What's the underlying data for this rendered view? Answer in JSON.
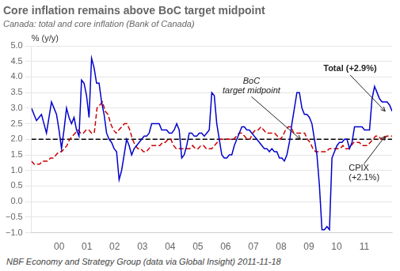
{
  "chart_data": {
    "type": "line",
    "title": "Core inflation remains above BoC target midpoint",
    "subtitle": "Canada: total and core inflation (Bank of Canada)",
    "footnote": "NBF Economy and Strategy Group (data via Global Insight) 2011-11-18",
    "ylabel": "% (y/y)",
    "xlim": [
      1999.0,
      2012.0
    ],
    "xticks": [
      {
        "value": 2000,
        "label": "00"
      },
      {
        "value": 2001,
        "label": "01"
      },
      {
        "value": 2002,
        "label": "02"
      },
      {
        "value": 2003,
        "label": "03"
      },
      {
        "value": 2004,
        "label": "04"
      },
      {
        "value": 2005,
        "label": "05"
      },
      {
        "value": 2006,
        "label": "06"
      },
      {
        "value": 2007,
        "label": "07"
      },
      {
        "value": 2008,
        "label": "08"
      },
      {
        "value": 2009,
        "label": "09"
      },
      {
        "value": 2010,
        "label": "10"
      },
      {
        "value": 2011,
        "label": "11"
      }
    ],
    "ylim": [
      -1.0,
      5.0
    ],
    "yticks": [
      {
        "value": -1.0,
        "label": "−1.0"
      },
      {
        "value": -0.5,
        "label": "−0.5"
      },
      {
        "value": 0.0,
        "label": "0.0"
      },
      0.5,
      {
        "value": 1.0,
        "label": "1.0"
      },
      1.5,
      {
        "value": 2.0,
        "label": "2.0"
      },
      2.5,
      {
        "value": 3.0,
        "label": "3.0"
      },
      3.5,
      {
        "value": 4.0,
        "label": "4.0"
      },
      4.5,
      {
        "value": 5.0,
        "label": "5.0"
      }
    ],
    "grid": "y",
    "series": [
      {
        "color": "#0000CC",
        "line_style": "solid",
        "x": [
          1999.0,
          1999.0903,
          1999.1806,
          1999.2708,
          1999.3611,
          1999.4514,
          1999.5417,
          1999.6319,
          1999.7222,
          1999.8125,
          1999.9028,
          1999.9931,
          2000.0833,
          2000.1736,
          2000.2639,
          2000.3542,
          2000.4444,
          2000.5347,
          2000.625,
          2000.7153,
          2000.8056,
          2000.8958,
          2000.9861,
          2001.0764,
          2001.1667,
          2001.2569,
          2001.3472,
          2001.4375,
          2001.5278,
          2001.6181,
          2001.7083,
          2001.7986,
          2001.8889,
          2001.9792,
          2002.0694,
          2002.1597,
          2002.25,
          2002.3403,
          2002.4306,
          2002.5208,
          2002.6111,
          2002.7014,
          2002.7917,
          2002.8819,
          2002.9722,
          2003.0625,
          2003.1528,
          2003.2431,
          2003.3333,
          2003.4236,
          2003.5139,
          2003.6042,
          2003.6944,
          2003.7847,
          2003.875,
          2003.9653,
          2004.0556,
          2004.1458,
          2004.2361,
          2004.3264,
          2004.4167,
          2004.5069,
          2004.5972,
          2004.6875,
          2004.7778,
          2004.8681,
          2004.9583,
          2005.0486,
          2005.1389,
          2005.2292,
          2005.3194,
          2005.4097,
          2005.5,
          2005.5903,
          2005.6806,
          2005.7708,
          2005.8611,
          2005.9514,
          2006.0417,
          2006.1319,
          2006.2222,
          2006.3125,
          2006.4028,
          2006.4931,
          2006.5833,
          2006.6736,
          2006.7639,
          2006.8542,
          2006.9444,
          2007.0347,
          2007.125,
          2007.2153,
          2007.3056,
          2007.3958,
          2007.4861,
          2007.5764,
          2007.6667,
          2007.7569,
          2007.8472,
          2007.9375,
          2008.0278,
          2008.1181,
          2008.2083,
          2008.2986,
          2008.3889,
          2008.4792,
          2008.5694,
          2008.6597,
          2008.75,
          2008.8403,
          2008.9306,
          2009.0208,
          2009.1111,
          2009.2014,
          2009.2917,
          2009.3819,
          2009.4722,
          2009.5625,
          2009.6528,
          2009.7431,
          2009.8333,
          2009.9236,
          2010.0139,
          2010.1042,
          2010.1944,
          2010.2847,
          2010.375,
          2010.4653,
          2010.5556,
          2010.6458,
          2010.7361,
          2010.8264,
          2010.9167,
          2011.0069,
          2011.0972,
          2011.1875,
          2011.2778,
          2011.3681,
          2011.4583,
          2011.5486,
          2011.6389,
          2011.7292,
          2011.8194,
          2011.9097,
          2012.0
        ],
        "values": [
          3.0,
          2.8,
          2.6,
          2.7,
          2.8,
          2.5,
          2.2,
          2.7,
          3.2,
          3.0,
          2.8,
          2.3,
          1.7,
          2.3,
          3.0,
          2.7,
          2.5,
          2.7,
          2.3,
          2.1,
          3.9,
          3.8,
          3.4,
          2.7,
          4.6,
          4.3,
          3.8,
          3.8,
          3.2,
          2.8,
          2.2,
          2.0,
          1.9,
          1.7,
          1.6,
          0.7,
          1.0,
          1.5,
          2.0,
          1.8,
          1.5,
          1.7,
          1.8,
          1.9,
          2.0,
          2.1,
          2.1,
          2.2,
          2.5,
          2.5,
          2.5,
          2.5,
          2.3,
          2.3,
          2.3,
          2.2,
          2.2,
          2.3,
          2.5,
          2.3,
          1.4,
          1.5,
          1.8,
          2.2,
          2.2,
          2.1,
          2.1,
          2.2,
          2.2,
          2.1,
          2.2,
          2.3,
          3.5,
          3.4,
          2.5,
          2.0,
          1.5,
          1.4,
          1.4,
          1.5,
          1.5,
          1.8,
          2.0,
          2.2,
          2.4,
          2.4,
          2.3,
          2.3,
          2.2,
          2.1,
          2.0,
          1.9,
          1.8,
          1.7,
          1.7,
          1.6,
          1.7,
          1.6,
          1.6,
          1.4,
          1.4,
          1.3,
          1.5,
          1.9,
          2.5,
          3.0,
          3.5,
          3.5,
          3.0,
          2.8,
          2.8,
          2.7,
          2.5,
          2.0,
          1.5,
          0.5,
          -0.9,
          -0.9,
          -0.8,
          -0.9,
          1.4,
          1.6,
          1.8,
          1.9,
          1.9,
          2.0,
          2.0,
          1.7,
          1.9,
          2.4,
          2.4,
          2.4,
          2.4,
          2.3,
          2.3,
          2.3,
          3.3,
          3.7,
          3.5,
          3.3,
          3.2,
          3.2,
          3.2,
          3.1,
          2.9
        ]
      },
      {
        "color": "#CC0000",
        "line_style": "dashed",
        "x": [
          1999.0,
          1999.0985,
          1999.197,
          1999.2955,
          1999.3939,
          1999.4924,
          1999.5909,
          1999.6894,
          1999.7879,
          1999.8864,
          1999.9848,
          2000.0833,
          2000.1818,
          2000.2803,
          2000.3788,
          2000.4773,
          2000.5758,
          2000.6742,
          2000.7727,
          2000.8712,
          2000.9697,
          2001.0682,
          2001.1667,
          2001.2652,
          2001.3636,
          2001.4621,
          2001.5606,
          2001.6591,
          2001.7576,
          2001.8561,
          2001.9545,
          2002.053,
          2002.1515,
          2002.25,
          2002.3485,
          2002.447,
          2002.5455,
          2002.6439,
          2002.7424,
          2002.8409,
          2002.9394,
          2003.0379,
          2003.1364,
          2003.2348,
          2003.3333,
          2003.4318,
          2003.5303,
          2003.6288,
          2003.7273,
          2003.8258,
          2003.9242,
          2004.0227,
          2004.1212,
          2004.2197,
          2004.3182,
          2004.4167,
          2004.5152,
          2004.6136,
          2004.7121,
          2004.8106,
          2004.9091,
          2005.0076,
          2005.1061,
          2005.2045,
          2005.303,
          2005.4015,
          2005.5,
          2005.5985,
          2005.697,
          2005.7955,
          2005.8939,
          2005.9924,
          2006.0909,
          2006.1894,
          2006.2879,
          2006.3864,
          2006.4848,
          2006.5833,
          2006.6818,
          2006.7803,
          2006.8788,
          2006.9773,
          2007.0758,
          2007.1742,
          2007.2727,
          2007.3712,
          2007.4697,
          2007.5682,
          2007.6667,
          2007.7652,
          2007.8636,
          2007.9621,
          2008.0606,
          2008.1591,
          2008.2576,
          2008.3561,
          2008.4545,
          2008.553,
          2008.6515,
          2008.75,
          2008.8485,
          2008.947,
          2009.0455,
          2009.1439,
          2009.2424,
          2009.3409,
          2009.4394,
          2009.5379,
          2009.6364,
          2009.7348,
          2009.8333,
          2009.9318,
          2010.0303,
          2010.1288,
          2010.2273,
          2010.3258,
          2010.4242,
          2010.5227,
          2010.6212,
          2010.7197,
          2010.8182,
          2010.9167,
          2011.0152,
          2011.1136,
          2011.2121,
          2011.3106,
          2011.4091,
          2011.5076,
          2011.6061,
          2011.7045,
          2011.803,
          2011.9015,
          2012.0
        ],
        "values": [
          1.3,
          1.2,
          1.2,
          1.2,
          1.3,
          1.3,
          1.3,
          1.4,
          1.4,
          1.5,
          1.6,
          1.6,
          1.7,
          1.8,
          2.0,
          2.1,
          2.2,
          2.3,
          2.2,
          2.2,
          2.3,
          2.3,
          2.2,
          2.2,
          3.0,
          3.1,
          3.2,
          2.9,
          2.8,
          2.5,
          2.3,
          2.2,
          2.3,
          2.4,
          2.5,
          2.5,
          2.3,
          2.0,
          1.8,
          1.7,
          1.7,
          1.6,
          1.6,
          1.7,
          1.8,
          1.8,
          1.8,
          1.8,
          1.9,
          1.9,
          2.0,
          2.0,
          1.8,
          1.7,
          1.7,
          1.7,
          1.7,
          1.7,
          1.7,
          1.8,
          1.7,
          1.7,
          1.8,
          1.8,
          1.7,
          1.7,
          1.7,
          1.8,
          1.9,
          2.0,
          2.0,
          2.0,
          2.0,
          2.0,
          2.0,
          2.1,
          2.2,
          2.2,
          2.1,
          2.0,
          2.0,
          2.2,
          2.3,
          2.3,
          2.4,
          2.3,
          2.2,
          2.2,
          2.2,
          2.2,
          2.1,
          2.0,
          2.1,
          2.3,
          2.4,
          2.4,
          2.2,
          2.2,
          2.2,
          2.2,
          2.2,
          2.0,
          1.9,
          1.7,
          1.6,
          1.6,
          1.6,
          1.6,
          1.6,
          1.7,
          1.7,
          1.7,
          1.7,
          1.7,
          1.8,
          1.7,
          1.7,
          1.8,
          1.9,
          1.9,
          1.9,
          1.8,
          1.8,
          1.8,
          1.9,
          2.0,
          2.1,
          2.1,
          2.0,
          2.0,
          2.1,
          2.1,
          2.1
        ]
      },
      {
        "color": "#000000",
        "line_style": "dashed",
        "x": [
          1999.0,
          2012.0
        ],
        "values": [
          2.0,
          2.0
        ]
      }
    ],
    "annotations": [
      {
        "text": "BoC\ntarget midpoint",
        "x": 2008.7,
        "y": 2.0
      },
      {
        "text": "Total (+2.9%)",
        "x": 2011.75,
        "y": 2.9
      },
      {
        "text": "CPIX\n(+2.1%)",
        "x": 2011.75,
        "y": 2.1
      }
    ]
  }
}
